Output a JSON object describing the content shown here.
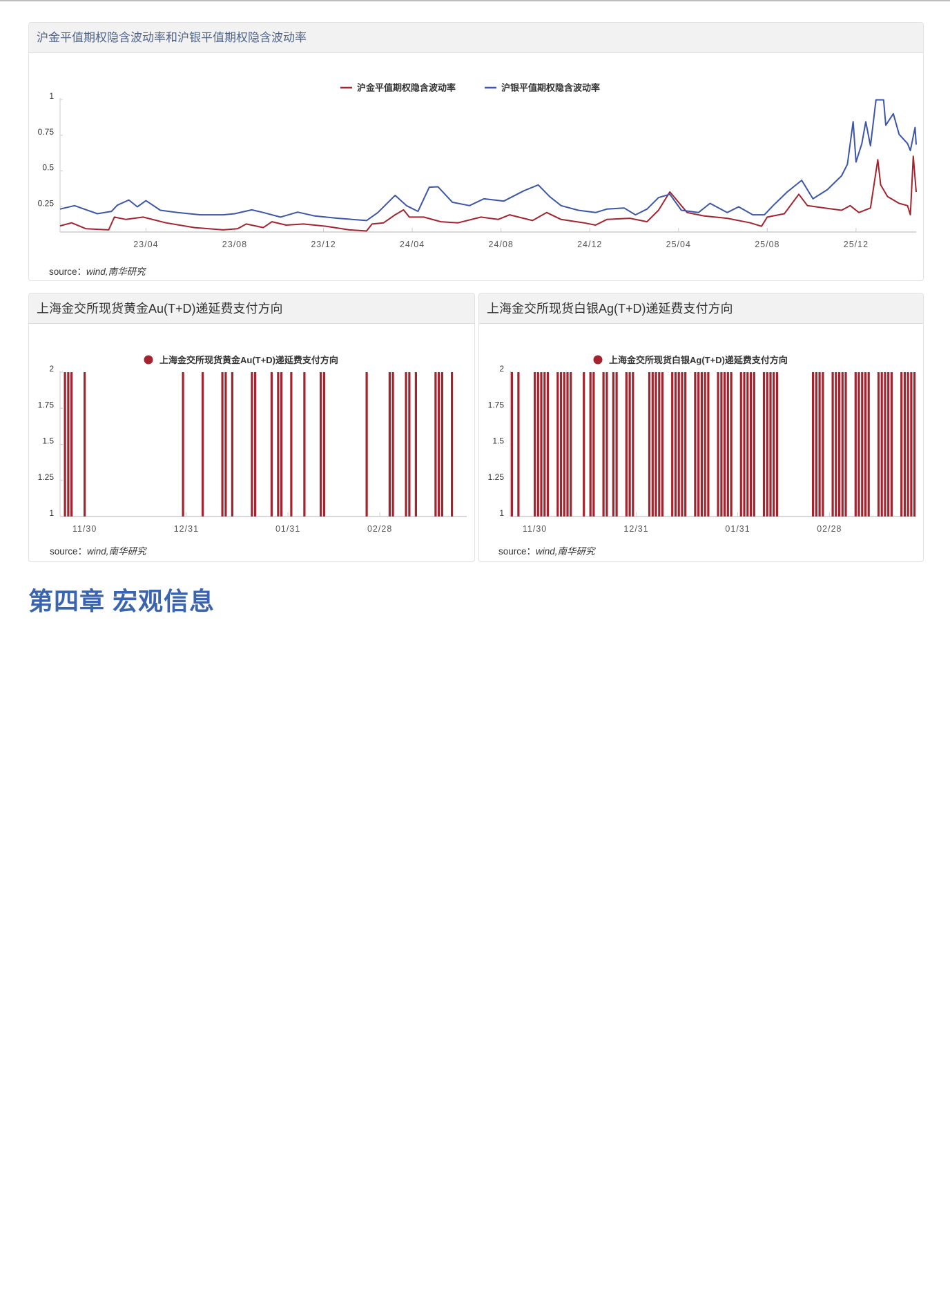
{
  "chapter_heading": "第四章 宏观信息",
  "source_label": "source：",
  "source_value": "wind,南华研究",
  "chart_data": [
    {
      "type": "line",
      "title": "沪金平值期权隐含波动率和沪银平值期权隐含波动率",
      "xlabel": "",
      "ylabel": "",
      "x_unit": "months since 2022-12",
      "xlim": [
        0.13,
        38.71
      ],
      "ylim": [
        0.074,
        1
      ],
      "yticks": [
        0.25,
        0.5,
        0.75,
        1
      ],
      "ytick_labels": [
        "0.25",
        "0.5",
        "0.75",
        "1"
      ],
      "xticks": [
        4,
        8,
        12,
        16,
        20,
        24,
        28,
        32,
        36
      ],
      "xtick_labels": [
        "23/04",
        "23/08",
        "23/12",
        "24/04",
        "24/08",
        "24/12",
        "25/04",
        "25/08",
        "25/12"
      ],
      "legend_position": "top-center",
      "grid": false,
      "series": [
        {
          "name": "沪金平值期权隐含波动率",
          "color": "#a3232e",
          "points": [
            [
              0.13,
              0.117
            ],
            [
              0.65,
              0.138
            ],
            [
              1.29,
              0.097
            ],
            [
              2.32,
              0.089
            ],
            [
              2.58,
              0.178
            ],
            [
              3.1,
              0.162
            ],
            [
              3.87,
              0.178
            ],
            [
              4.9,
              0.138
            ],
            [
              6.19,
              0.105
            ],
            [
              7.48,
              0.089
            ],
            [
              8.13,
              0.097
            ],
            [
              8.52,
              0.13
            ],
            [
              9.29,
              0.105
            ],
            [
              9.68,
              0.146
            ],
            [
              10.32,
              0.122
            ],
            [
              11.1,
              0.13
            ],
            [
              12.13,
              0.114
            ],
            [
              13.16,
              0.089
            ],
            [
              13.94,
              0.081
            ],
            [
              14.19,
              0.13
            ],
            [
              14.71,
              0.138
            ],
            [
              15.23,
              0.194
            ],
            [
              15.61,
              0.229
            ],
            [
              15.87,
              0.178
            ],
            [
              16.52,
              0.178
            ],
            [
              17.29,
              0.146
            ],
            [
              18.06,
              0.138
            ],
            [
              19.1,
              0.178
            ],
            [
              19.87,
              0.162
            ],
            [
              20.39,
              0.194
            ],
            [
              21.42,
              0.154
            ],
            [
              22.06,
              0.21
            ],
            [
              22.71,
              0.162
            ],
            [
              23.74,
              0.138
            ],
            [
              24.26,
              0.122
            ],
            [
              24.77,
              0.162
            ],
            [
              25.81,
              0.17
            ],
            [
              26.58,
              0.146
            ],
            [
              27.1,
              0.226
            ],
            [
              27.61,
              0.354
            ],
            [
              27.87,
              0.306
            ],
            [
              28.39,
              0.21
            ],
            [
              29.16,
              0.186
            ],
            [
              30.19,
              0.17
            ],
            [
              31.23,
              0.138
            ],
            [
              31.74,
              0.114
            ],
            [
              32.0,
              0.178
            ],
            [
              32.77,
              0.202
            ],
            [
              33.42,
              0.338
            ],
            [
              33.81,
              0.258
            ],
            [
              34.58,
              0.242
            ],
            [
              35.35,
              0.226
            ],
            [
              35.74,
              0.258
            ],
            [
              36.13,
              0.21
            ],
            [
              36.65,
              0.242
            ],
            [
              36.98,
              0.579
            ],
            [
              37.11,
              0.403
            ],
            [
              37.42,
              0.322
            ],
            [
              37.94,
              0.274
            ],
            [
              38.32,
              0.258
            ],
            [
              38.45,
              0.194
            ],
            [
              38.58,
              0.603
            ],
            [
              38.71,
              0.354
            ]
          ]
        },
        {
          "name": "沪银平值期权隐含波动率",
          "color": "#3b55a8",
          "points": [
            [
              0.13,
              0.234
            ],
            [
              0.78,
              0.258
            ],
            [
              1.81,
              0.202
            ],
            [
              2.45,
              0.218
            ],
            [
              2.71,
              0.261
            ],
            [
              3.23,
              0.298
            ],
            [
              3.61,
              0.25
            ],
            [
              4.0,
              0.293
            ],
            [
              4.65,
              0.226
            ],
            [
              5.42,
              0.21
            ],
            [
              6.45,
              0.194
            ],
            [
              7.48,
              0.194
            ],
            [
              8.0,
              0.202
            ],
            [
              8.77,
              0.229
            ],
            [
              9.29,
              0.21
            ],
            [
              10.06,
              0.178
            ],
            [
              10.84,
              0.213
            ],
            [
              11.61,
              0.186
            ],
            [
              12.65,
              0.17
            ],
            [
              13.94,
              0.154
            ],
            [
              14.45,
              0.21
            ],
            [
              15.23,
              0.33
            ],
            [
              15.74,
              0.258
            ],
            [
              16.26,
              0.218
            ],
            [
              16.77,
              0.387
            ],
            [
              17.16,
              0.39
            ],
            [
              17.81,
              0.282
            ],
            [
              18.58,
              0.258
            ],
            [
              19.23,
              0.306
            ],
            [
              20.13,
              0.29
            ],
            [
              21.03,
              0.362
            ],
            [
              21.68,
              0.403
            ],
            [
              22.19,
              0.322
            ],
            [
              22.71,
              0.258
            ],
            [
              23.48,
              0.226
            ],
            [
              24.26,
              0.21
            ],
            [
              24.77,
              0.234
            ],
            [
              25.55,
              0.242
            ],
            [
              26.06,
              0.194
            ],
            [
              26.58,
              0.234
            ],
            [
              27.1,
              0.314
            ],
            [
              27.61,
              0.338
            ],
            [
              28.13,
              0.226
            ],
            [
              28.9,
              0.21
            ],
            [
              29.42,
              0.274
            ],
            [
              30.19,
              0.21
            ],
            [
              30.71,
              0.25
            ],
            [
              31.35,
              0.194
            ],
            [
              31.87,
              0.194
            ],
            [
              32.26,
              0.258
            ],
            [
              32.9,
              0.354
            ],
            [
              33.55,
              0.435
            ],
            [
              34.06,
              0.306
            ],
            [
              34.71,
              0.37
            ],
            [
              35.35,
              0.467
            ],
            [
              35.61,
              0.547
            ],
            [
              35.87,
              0.844
            ],
            [
              36.0,
              0.563
            ],
            [
              36.26,
              0.692
            ],
            [
              36.44,
              0.844
            ],
            [
              36.65,
              0.676
            ],
            [
              36.9,
              0.997
            ],
            [
              37.24,
              0.997
            ],
            [
              37.34,
              0.82
            ],
            [
              37.68,
              0.9
            ],
            [
              37.94,
              0.756
            ],
            [
              38.32,
              0.692
            ],
            [
              38.45,
              0.643
            ],
            [
              38.66,
              0.804
            ],
            [
              38.71,
              0.684
            ]
          ]
        }
      ]
    },
    {
      "type": "bar",
      "title": "上海金交所现货黄金Au(T+D)递延费支付方向",
      "xlabel": "",
      "ylabel": "",
      "x_unit": "days since 11/30",
      "xlim": [
        -7.5,
        116.5
      ],
      "ylim": [
        1,
        2
      ],
      "yticks": [
        1,
        1.25,
        1.5,
        1.75,
        2
      ],
      "ytick_labels": [
        "1",
        "1.25",
        "1.5",
        "1.75",
        "2"
      ],
      "xticks": [
        0,
        31,
        62,
        90
      ],
      "xtick_labels": [
        "11/30",
        "12/31",
        "01/31",
        "02/28"
      ],
      "legend_position": "top-center",
      "series": [
        {
          "name": "上海金交所现货黄金Au(T+D)递延费支付方向",
          "color": "#a3232e",
          "x": [
            -6,
            -5,
            -4,
            0,
            30,
            36,
            42,
            43,
            45,
            51,
            52,
            57,
            59,
            60,
            63,
            67,
            72,
            73,
            86,
            93,
            94,
            98,
            99,
            101,
            107,
            108,
            109,
            112
          ],
          "value": 2
        }
      ]
    },
    {
      "type": "bar",
      "title": "上海金交所现货白银Ag(T+D)递延费支付方向",
      "xlabel": "",
      "ylabel": "",
      "x_unit": "days since 11/30",
      "xlim": [
        -7.5,
        116.5
      ],
      "ylim": [
        1,
        2
      ],
      "yticks": [
        1,
        1.25,
        1.5,
        1.75,
        2
      ],
      "ytick_labels": [
        "1",
        "1.25",
        "1.5",
        "1.75",
        "2"
      ],
      "xticks": [
        0,
        31,
        62,
        90
      ],
      "xtick_labels": [
        "11/30",
        "12/31",
        "01/31",
        "02/28"
      ],
      "legend_position": "top-center",
      "series": [
        {
          "name": "上海金交所现货白银Ag(T+D)递延费支付方向",
          "color": "#a3232e",
          "x": [
            -7,
            -5,
            0,
            1,
            2,
            3,
            4,
            7,
            8,
            9,
            10,
            11,
            15,
            17,
            18,
            21,
            22,
            24,
            25,
            28,
            29,
            30,
            35,
            36,
            37,
            38,
            39,
            42,
            43,
            44,
            45,
            46,
            49,
            50,
            51,
            52,
            53,
            56,
            57,
            58,
            59,
            60,
            63,
            64,
            65,
            66,
            67,
            70,
            71,
            72,
            73,
            74,
            85,
            86,
            87,
            88,
            91,
            92,
            93,
            94,
            95,
            98,
            99,
            100,
            101,
            102,
            105,
            106,
            107,
            108,
            109,
            112,
            113,
            114,
            115,
            116
          ],
          "value": 2
        }
      ]
    }
  ]
}
